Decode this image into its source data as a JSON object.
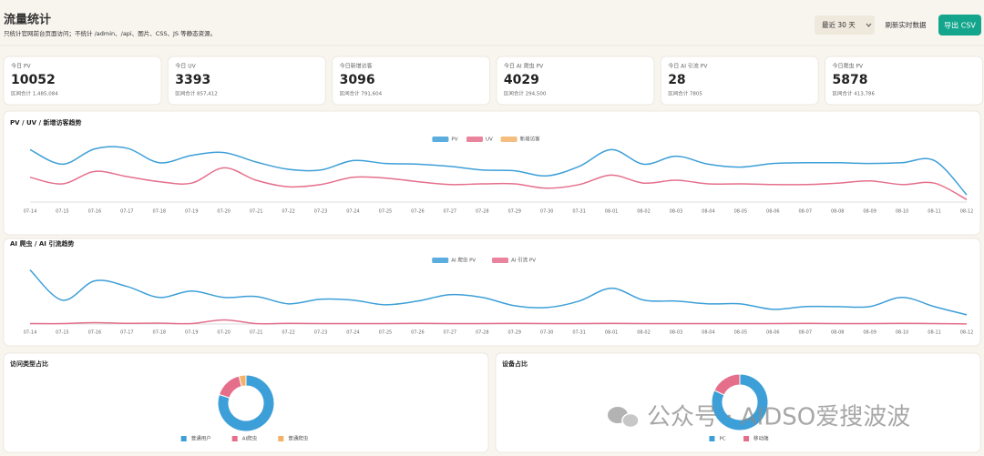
{
  "header": {
    "title": "流量统计",
    "subtitle": "只统计官网前台页面访问；不统计 /admin、/api、图片、CSS、JS 等静态资源。",
    "range_select": "最近 30 天",
    "refresh_button": "刷新实时数据",
    "export_button": "导出 CSV"
  },
  "cards": [
    {
      "label": "今日 PV",
      "value": 10052,
      "sub": "区间合计 1,485,084"
    },
    {
      "label": "今日 UV",
      "value": 3393,
      "sub": "区间合计 857,412"
    },
    {
      "label": "今日新增访客",
      "value": 3096,
      "sub": "区间合计 791,604"
    },
    {
      "label": "今日 AI 爬虫 PV",
      "value": 4029,
      "sub": "区间合计 294,500"
    },
    {
      "label": "今日 AI 引流 PV",
      "value": 28,
      "sub": "区间合计 7805"
    },
    {
      "label": "今日爬虫 PV",
      "value": 5878,
      "sub": "区间合计 413,786"
    }
  ],
  "chart_data": [
    {
      "type": "line",
      "title": "PV / UV / 新增访客趋势",
      "categories": [
        "07-14",
        "07-15",
        "07-16",
        "07-17",
        "07-18",
        "07-19",
        "07-20",
        "07-21",
        "07-22",
        "07-23",
        "07-24",
        "07-25",
        "07-26",
        "07-27",
        "07-28",
        "07-29",
        "07-30",
        "07-31",
        "08-01",
        "08-02",
        "08-03",
        "08-04",
        "08-05",
        "08-06",
        "08-07",
        "08-08",
        "08-09",
        "08-10",
        "08-11",
        "08-12"
      ],
      "ylim": [
        0,
        90000
      ],
      "series": [
        {
          "name": "PV",
          "color": "#3d9fd8",
          "values": [
            72000,
            52000,
            73000,
            74000,
            54000,
            64000,
            68000,
            55000,
            45000,
            44000,
            57000,
            53000,
            52000,
            49000,
            44000,
            43000,
            36000,
            49000,
            72000,
            52000,
            63000,
            52000,
            48000,
            53000,
            54000,
            54000,
            53000,
            54000,
            57000,
            10052
          ]
        },
        {
          "name": "UV",
          "color": "#e56f8b",
          "values": [
            34000,
            25000,
            42000,
            35000,
            28000,
            26000,
            47000,
            30000,
            21000,
            24000,
            34000,
            33000,
            28000,
            24000,
            25000,
            25000,
            19000,
            24000,
            37000,
            26000,
            30000,
            25000,
            25000,
            24000,
            24000,
            26000,
            29000,
            24000,
            26000,
            3393
          ]
        },
        {
          "name": "新增访客",
          "color": "#f3b169",
          "values": [
            null,
            null,
            null,
            null,
            null,
            null,
            null,
            null,
            null,
            null,
            null,
            null,
            null,
            null,
            null,
            null,
            null,
            null,
            null,
            null,
            null,
            null,
            null,
            null,
            null,
            null,
            null,
            null,
            null,
            null
          ]
        }
      ]
    },
    {
      "type": "line",
      "title": "AI 爬虫 / AI 引流趋势",
      "categories": [
        "07-14",
        "07-15",
        "07-16",
        "07-17",
        "07-18",
        "07-19",
        "07-20",
        "07-21",
        "07-22",
        "07-23",
        "07-24",
        "07-25",
        "07-26",
        "07-27",
        "07-28",
        "07-29",
        "07-30",
        "07-31",
        "08-01",
        "08-02",
        "08-03",
        "08-04",
        "08-05",
        "08-06",
        "08-07",
        "08-08",
        "08-09",
        "08-10",
        "08-11",
        "08-12"
      ],
      "ylim": [
        0,
        25000
      ],
      "series": [
        {
          "name": "AI 爬虫 PV",
          "color": "#3d9fd8",
          "values": [
            23600,
            10400,
            18800,
            16400,
            11600,
            14400,
            11600,
            12000,
            8800,
            10800,
            10400,
            8400,
            10000,
            12800,
            11600,
            8000,
            7200,
            10000,
            15600,
            10400,
            10000,
            8800,
            8800,
            6400,
            7600,
            7600,
            7600,
            11600,
            7600,
            4029
          ]
        },
        {
          "name": "AI 引流 PV",
          "color": "#e56f8b",
          "values": [
            200,
            200,
            600,
            300,
            400,
            200,
            1800,
            200,
            300,
            200,
            200,
            200,
            300,
            200,
            200,
            300,
            200,
            200,
            300,
            200,
            200,
            200,
            200,
            200,
            300,
            200,
            200,
            300,
            200,
            28
          ]
        }
      ]
    },
    {
      "type": "pie",
      "title": "访问类型占比",
      "categories": [
        "普通用户",
        "AI爬虫",
        "普通爬虫"
      ],
      "values": [
        80,
        16,
        4
      ],
      "colors": [
        "#3d9fd8",
        "#e56f8b",
        "#f3b169"
      ]
    },
    {
      "type": "pie",
      "title": "设备占比",
      "categories": [
        "PC",
        "移动端"
      ],
      "values": [
        82,
        18
      ],
      "colors": [
        "#3d9fd8",
        "#e56f8b"
      ]
    }
  ],
  "watermark": "公众号 · AIDSO爱搜波波"
}
